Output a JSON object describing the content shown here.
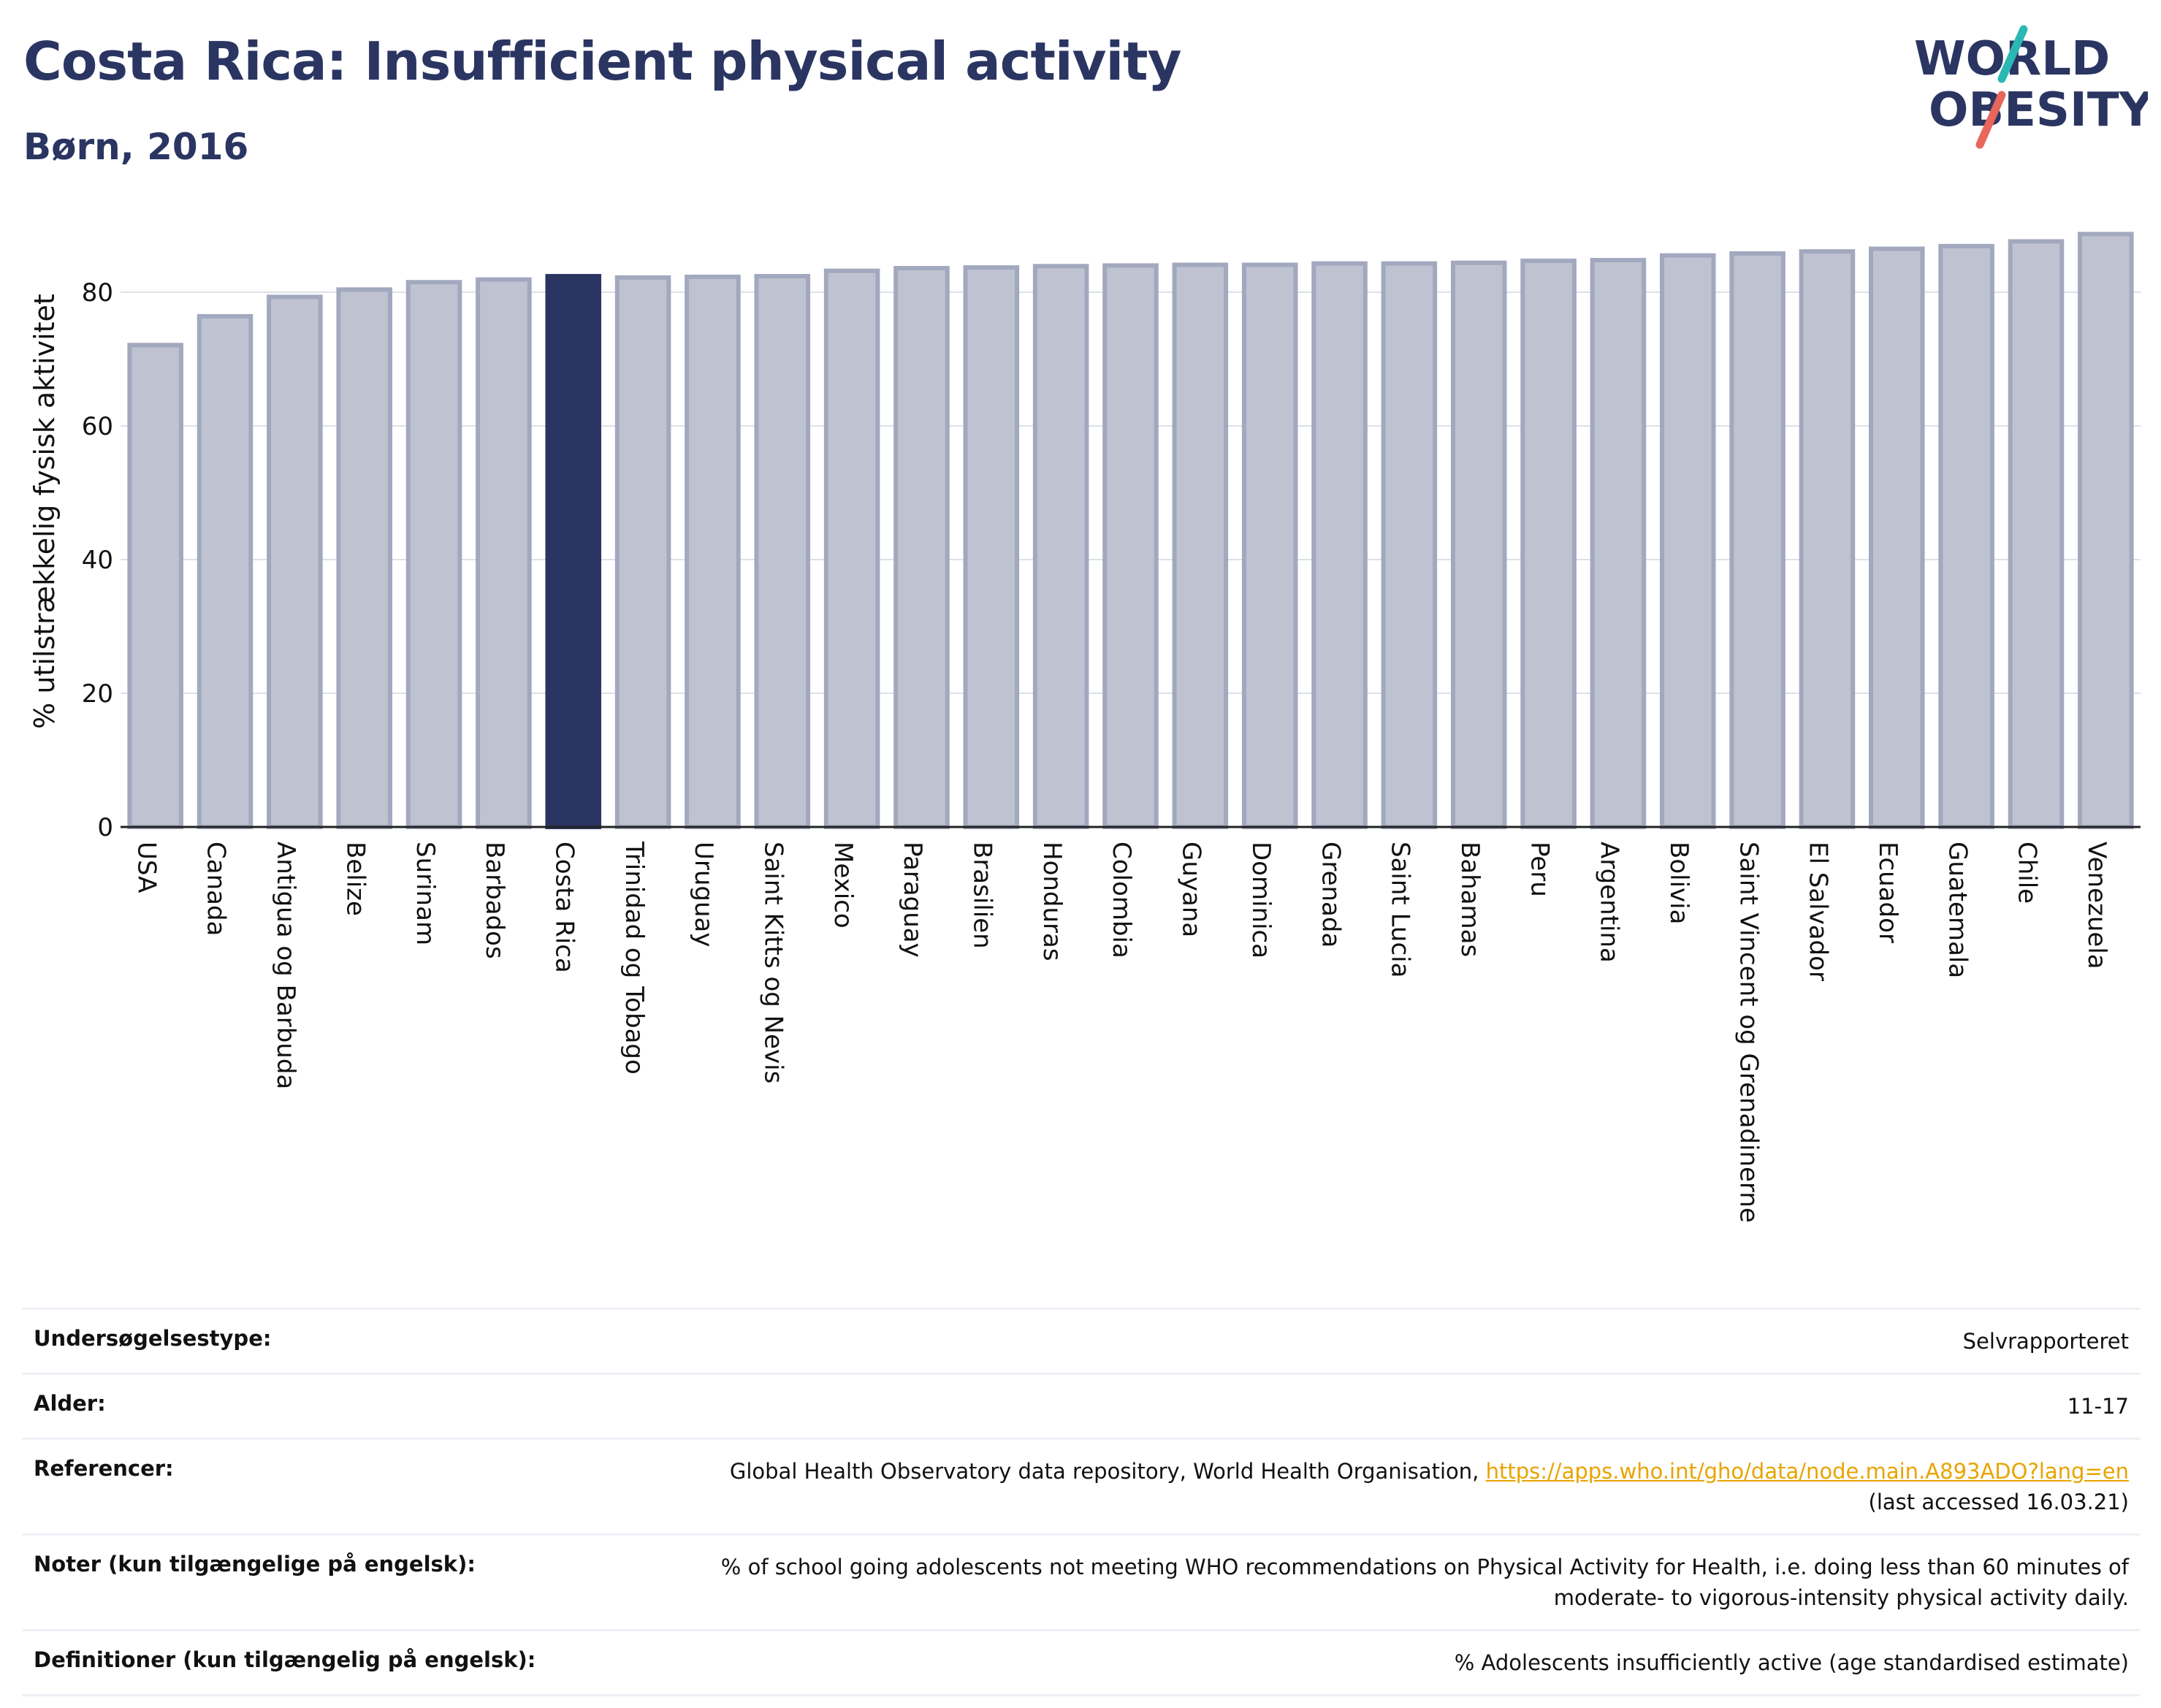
{
  "header": {
    "title": "Costa Rica: Insufficient physical activity",
    "subtitle": "Børn, 2016"
  },
  "logo": {
    "line1": "WORLD",
    "line2": "OBESITY",
    "colors": {
      "text": "#2b3562",
      "slash_top": "#2bb7b3",
      "slash_bottom": "#e8665a"
    }
  },
  "colors": {
    "bar_default": "#bfc3d1",
    "bar_default_stroke": "#a2a8be",
    "bar_highlight": "#2b3562",
    "axis": "#222222",
    "grid": "#dde0e8"
  },
  "chart_data": {
    "type": "bar",
    "ylabel": "% utilstrækkelig fysisk aktivitet",
    "xlabel": "",
    "ylim": [
      0,
      90
    ],
    "yticks": [
      0,
      20,
      40,
      60,
      80
    ],
    "grid": true,
    "highlight": "Costa Rica",
    "categories": [
      "USA",
      "Canada",
      "Antigua og Barbuda",
      "Belize",
      "Surinam",
      "Barbados",
      "Costa Rica",
      "Trinidad og Tobago",
      "Uruguay",
      "Saint Kitts og Nevis",
      "Mexico",
      "Paraguay",
      "Brasilien",
      "Honduras",
      "Colombia",
      "Guyana",
      "Dominica",
      "Grenada",
      "Saint Lucia",
      "Bahamas",
      "Peru",
      "Argentina",
      "Bolivia",
      "Saint Vincent og Grenadinerne",
      "El Salvador",
      "Ecuador",
      "Guatemala",
      "Chile",
      "Venezuela"
    ],
    "values": [
      72.1,
      76.4,
      79.3,
      80.4,
      81.5,
      81.9,
      82.4,
      82.2,
      82.3,
      82.4,
      83.2,
      83.6,
      83.7,
      83.9,
      84.0,
      84.1,
      84.1,
      84.3,
      84.3,
      84.4,
      84.7,
      84.8,
      85.5,
      85.8,
      86.1,
      86.5,
      86.9,
      87.6,
      88.7
    ]
  },
  "meta": [
    {
      "label": "Undersøgelsestype:",
      "value": "Selvrapporteret"
    },
    {
      "label": "Alder:",
      "value": "11-17"
    },
    {
      "label": "Referencer:",
      "value": "Global Health Observatory data repository, World Health Organisation, ",
      "link": "https://apps.who.int/gho/data/node.main.A893ADO?lang=en",
      "value2": "(last accessed 16.03.21)"
    },
    {
      "label": "Noter (kun tilgængelige på engelsk):",
      "value": "% of school going adolescents not meeting WHO recommendations on Physical Activity for Health, i.e. doing less than 60 minutes of moderate- to vigorous-intensity physical activity daily."
    },
    {
      "label": "Definitioner (kun tilgængelig på engelsk):",
      "value": "% Adolescents insufficiently active (age standardised estimate)"
    }
  ]
}
